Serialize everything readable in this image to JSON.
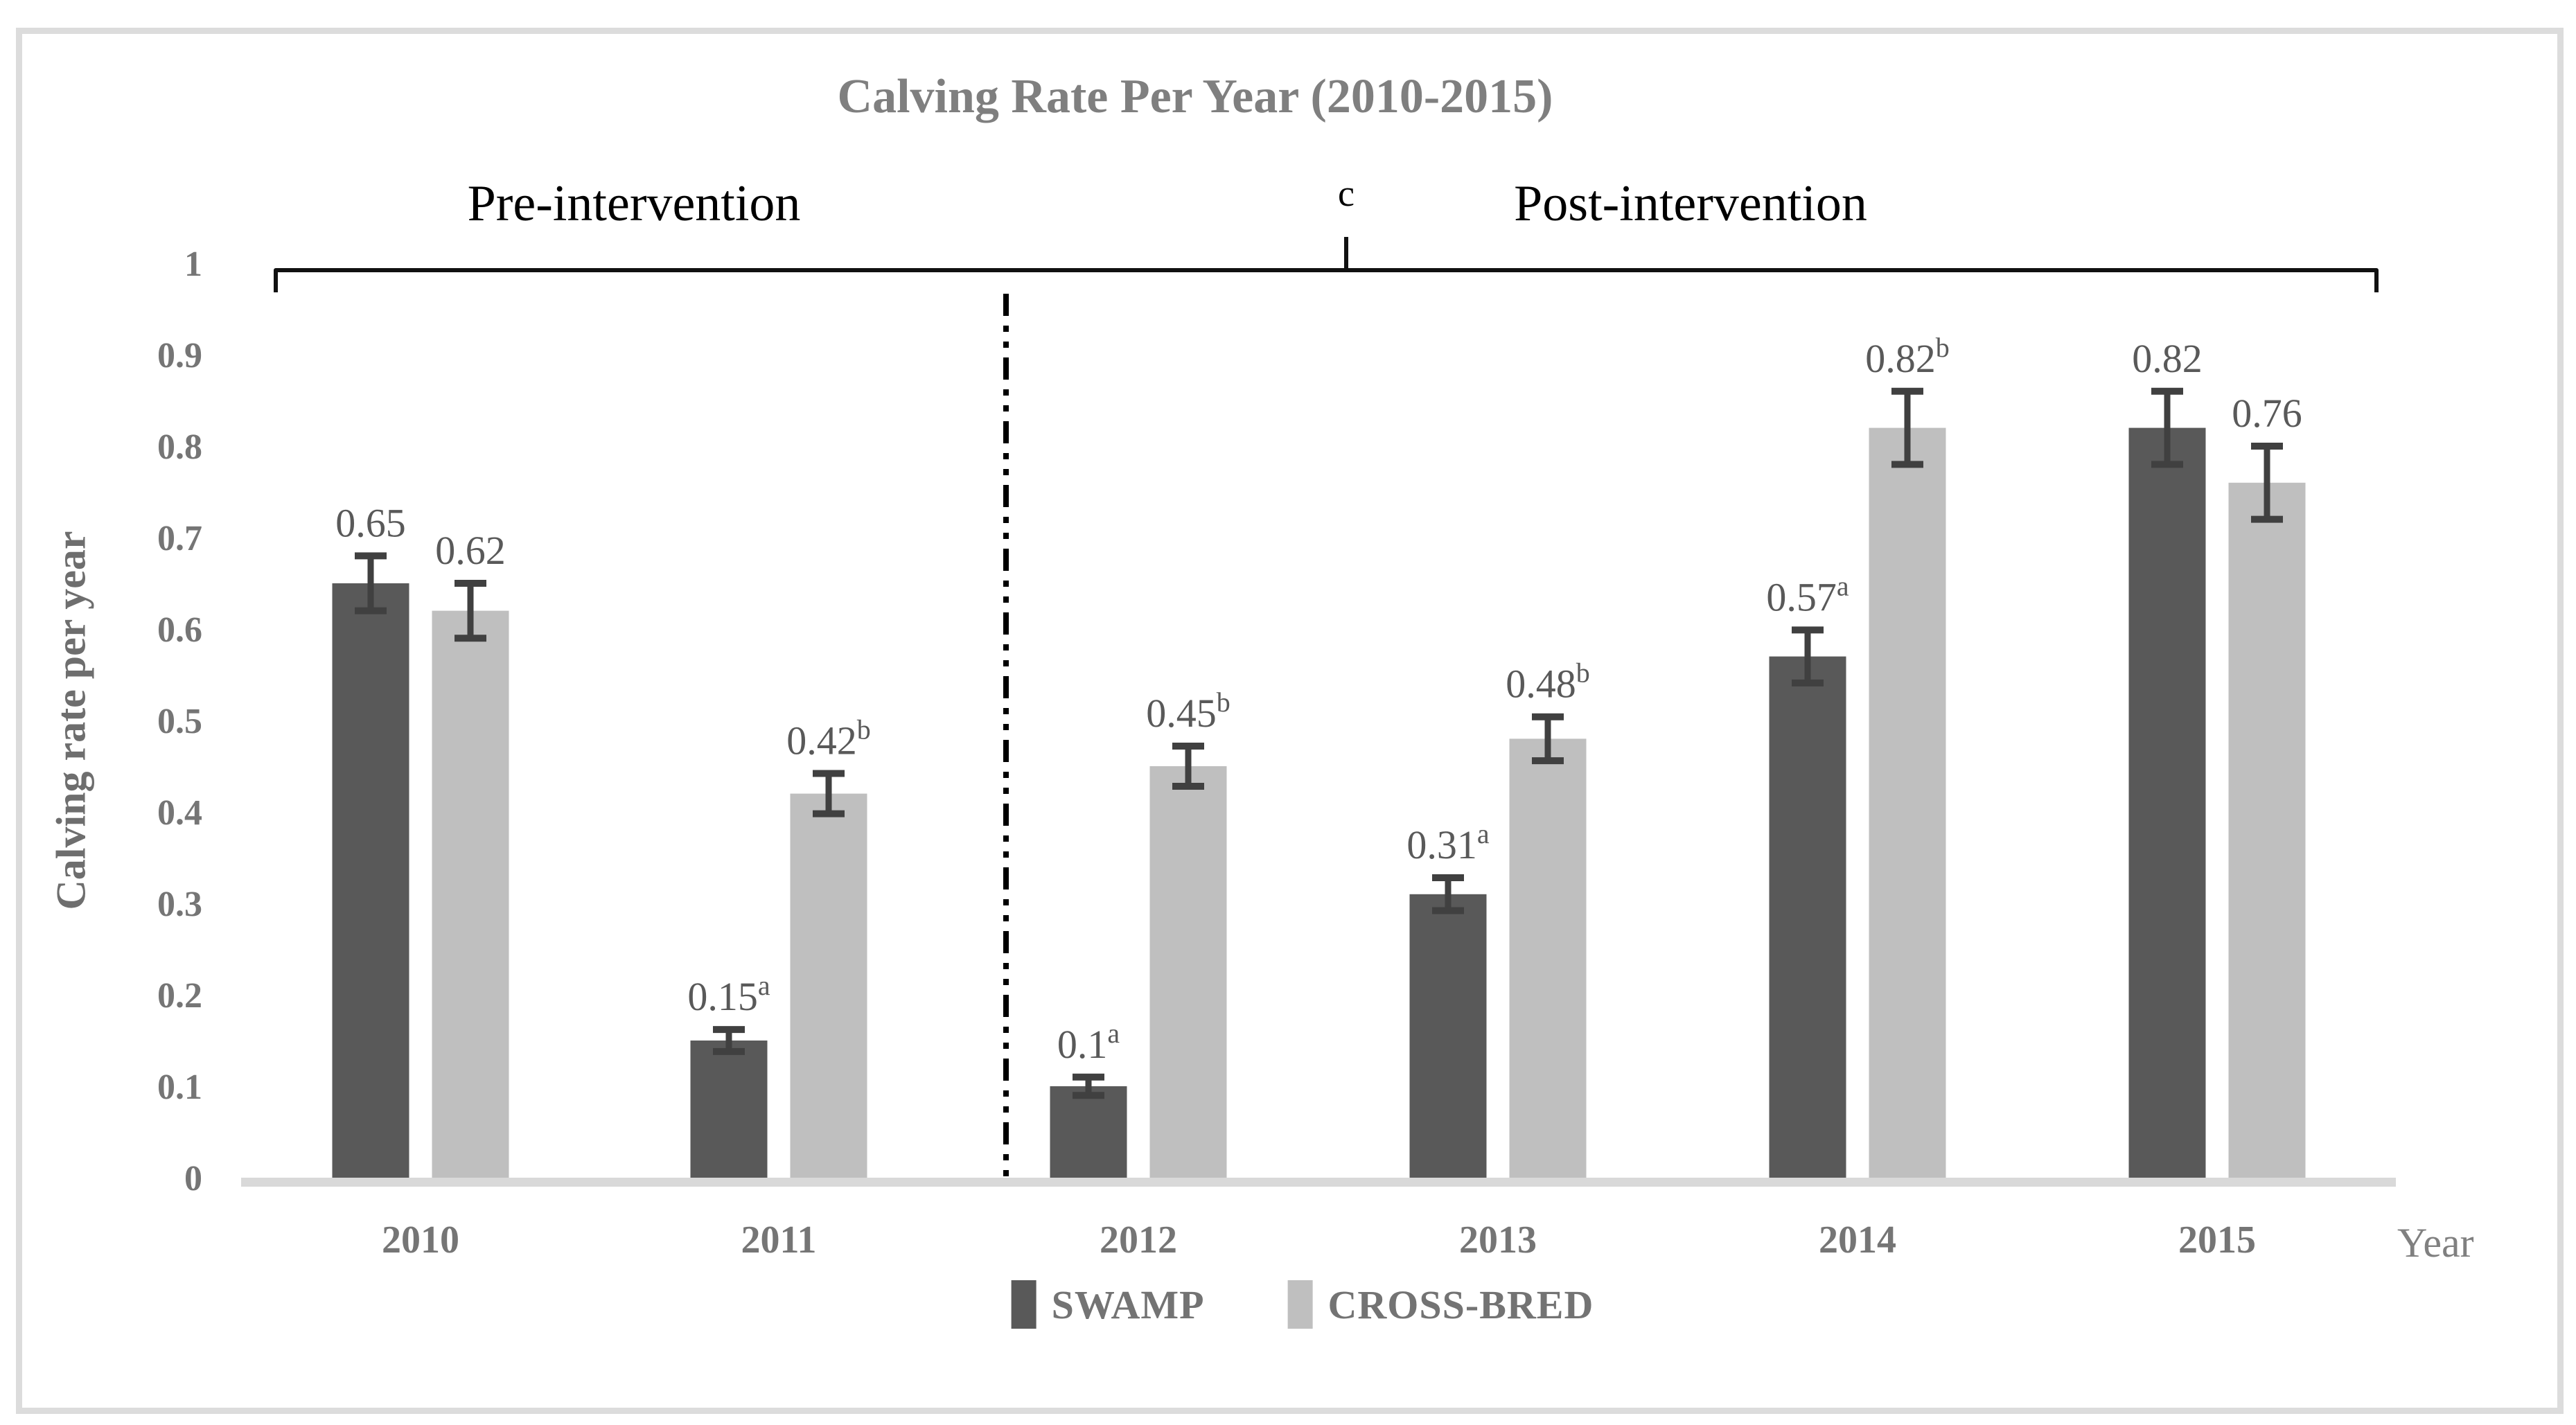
{
  "annotations": {
    "center_note": "c"
  },
  "style": {
    "frame_border": "#dcdcdc",
    "title_color": "#7f7f7f",
    "region_label_color": "#000000",
    "axis_line_color": "#d9d9d9",
    "tick_label_color": "#757575",
    "data_label_color": "#595959",
    "error_bar_color": "#404040",
    "bracket_color": "#111111",
    "divider_color": "#000000",
    "swamp_color": "#595959",
    "crossbred_color": "#bfbfbf"
  },
  "chart_data": {
    "type": "bar",
    "title": "Calving Rate Per Year (2010-2015)",
    "xlabel": "Year",
    "ylabel": "Calving rate per year",
    "ylim": [
      0,
      1
    ],
    "grid": false,
    "legend_position": "bottom",
    "y_tick_labels": [
      "1",
      "0.9",
      "0.8",
      "0.7",
      "0.6",
      "0.5",
      "0.4",
      "0.3",
      "0.2",
      "0.1",
      "0"
    ],
    "categories": [
      "2010",
      "2011",
      "2012",
      "2013",
      "2014",
      "2015"
    ],
    "series": [
      {
        "name": "SWAMP",
        "color": "#595959",
        "values": [
          0.65,
          0.15,
          0.1,
          0.31,
          0.57,
          0.82
        ],
        "superscripts": [
          "",
          "a",
          "a",
          "a",
          "a",
          ""
        ],
        "errors": [
          0.03,
          0.012,
          0.01,
          0.018,
          0.029,
          0.04
        ]
      },
      {
        "name": "CROSS-BRED",
        "color": "#bfbfbf",
        "values": [
          0.62,
          0.42,
          0.45,
          0.48,
          0.82,
          0.76
        ],
        "superscripts": [
          "",
          "b",
          "b",
          "b",
          "b",
          ""
        ],
        "errors": [
          0.03,
          0.022,
          0.022,
          0.024,
          0.04,
          0.04
        ]
      }
    ],
    "groups": {
      "pre": {
        "label": "Pre-intervention",
        "categories": [
          "2010",
          "2011"
        ]
      },
      "post": {
        "label": "Post-intervention",
        "categories": [
          "2012",
          "2013",
          "2014",
          "2015"
        ]
      }
    },
    "divider_between": [
      "2011",
      "2012"
    ]
  }
}
